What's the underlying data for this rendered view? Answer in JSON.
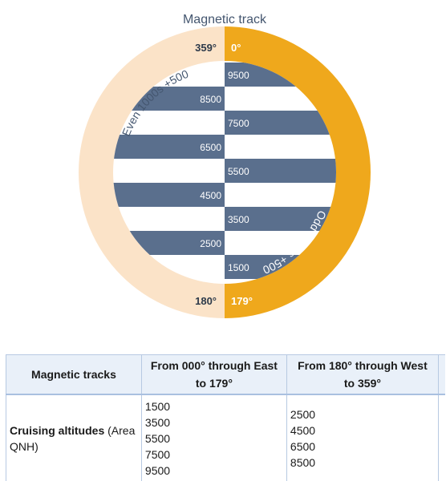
{
  "diagram": {
    "title": "Magnetic track",
    "left_ring_label": "Even 1000s +500",
    "right_ring_label": "Odd 1000s +500",
    "top_left": "359°",
    "top_right": "0°",
    "bottom_left": "180°",
    "bottom_right": "179°",
    "right_altitudes": [
      "9500",
      "7500",
      "5500",
      "3500",
      "1500"
    ],
    "left_altitudes": [
      "8500",
      "6500",
      "4500",
      "2500"
    ],
    "colors": {
      "east_ring": "#efa81c",
      "west_ring": "#fbe3c8",
      "band": "#5a6f8d",
      "title": "#44566f"
    }
  },
  "table": {
    "headers": [
      "Magnetic tracks",
      "From 000° through East to 179°",
      "From 180° through West to 359°"
    ],
    "row_label_bold": "Cruising altitudes",
    "row_label_rest": " (Area QNH)",
    "east_values": [
      "1500",
      "3500",
      "5500",
      "7500",
      "9500"
    ],
    "west_values": [
      "2500",
      "4500",
      "6500",
      "8500"
    ]
  }
}
